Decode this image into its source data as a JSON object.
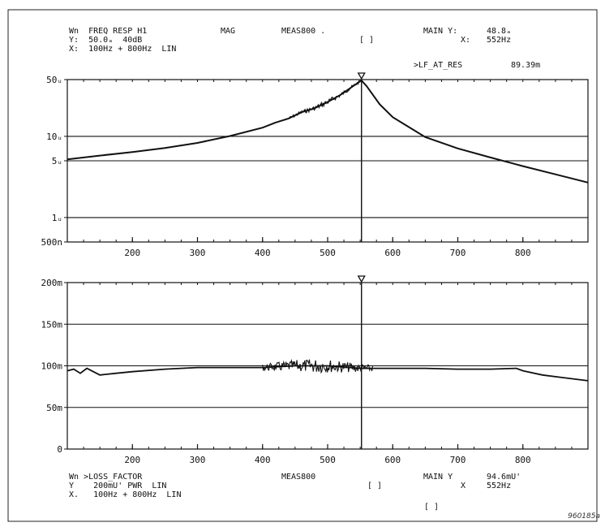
{
  "figure_id": "960185a",
  "top_header": {
    "line1_left": "Wn  FREQ RESP H1",
    "line1_mag": "MAG",
    "line1_meas": "MEAS800 .",
    "line1_main": "MAIN Y:",
    "line1_main_val": "48.8ₐ",
    "line2_left": "Y:  50.0ₐ  40dB",
    "line2_brackets": "[ ]",
    "line2_x": "X:",
    "line2_x_val": "552Hz",
    "line3_left": "X:  100Hz + 800Hz  LIN",
    "marker_label": ">LF_AT_RES",
    "marker_value": "89.39m"
  },
  "bottom_header": {
    "line1_left": "Wn >LOSS_FACTOR",
    "line1_meas": "MEAS800",
    "line1_main": "MAIN Y",
    "line1_main_val": "94.6mU'",
    "line2_left": "Y    200mU' PWR  LIN",
    "line2_brackets": "[ ]",
    "line2_x": "X",
    "line2_x_val": "552Hz",
    "line3_left": "X.   100Hz + 800Hz  LIN",
    "line4_brackets": "[ ]"
  },
  "chart_data": [
    {
      "type": "line",
      "title": "FREQ RESP H1",
      "scale": "log",
      "xlim": [
        100,
        900
      ],
      "ylim": [
        5e-07,
        5e-05
      ],
      "x_ticks": [
        200,
        300,
        400,
        500,
        600,
        700,
        800
      ],
      "x_tick_labels": [
        "200",
        "300",
        "400",
        "500",
        "600",
        "700",
        "800"
      ],
      "y_ticks": [
        5e-07,
        1e-06,
        5e-06,
        1e-05,
        5e-05
      ],
      "y_tick_labels": [
        "500n",
        "1ᵤ",
        "5ᵤ",
        "10ᵤ",
        "50ᵤ"
      ],
      "marker_x": 552,
      "series": [
        {
          "x": [
            100,
            150,
            200,
            250,
            300,
            350,
            400,
            420,
            440,
            460,
            480,
            500,
            520,
            540,
            552,
            560,
            580,
            600,
            650,
            700,
            750,
            800,
            850,
            900
          ],
          "y": [
            5.2e-06,
            5.8e-06,
            6.4e-06,
            7.2e-06,
            8.3e-06,
            1.01e-05,
            1.28e-05,
            1.48e-05,
            1.66e-05,
            1.98e-05,
            2.22e-05,
            2.65e-05,
            3.25e-05,
            4.2e-05,
            4.88e-05,
            4.15e-05,
            2.48e-05,
            1.72e-05,
            9.8e-06,
            7.1e-06,
            5.5e-06,
            4.3e-06,
            3.4e-06,
            2.7e-06
          ],
          "noise_band": [
            440,
            552
          ]
        }
      ]
    },
    {
      "type": "line",
      "title": ">LOSS_FACTOR",
      "scale": "linear",
      "xlim": [
        100,
        900
      ],
      "ylim": [
        0,
        0.2
      ],
      "x_ticks": [
        200,
        300,
        400,
        500,
        600,
        700,
        800
      ],
      "x_tick_labels": [
        "200",
        "300",
        "400",
        "500",
        "600",
        "700",
        "800"
      ],
      "y_ticks": [
        0,
        0.05,
        0.1,
        0.15,
        0.2
      ],
      "y_tick_labels": [
        "0",
        "50m",
        "100m",
        "150m",
        "200m"
      ],
      "marker_x": 552,
      "series": [
        {
          "x": [
            100,
            110,
            120,
            130,
            140,
            150,
            175,
            200,
            250,
            300,
            350,
            400,
            450,
            500,
            550,
            600,
            650,
            700,
            750,
            790,
            800,
            830,
            860,
            900
          ],
          "y": [
            0.094,
            0.096,
            0.091,
            0.097,
            0.093,
            0.089,
            0.091,
            0.093,
            0.096,
            0.098,
            0.098,
            0.098,
            0.1,
            0.1,
            0.097,
            0.097,
            0.097,
            0.096,
            0.096,
            0.097,
            0.094,
            0.089,
            0.086,
            0.082
          ],
          "noise_band": [
            400,
            570
          ]
        }
      ]
    }
  ]
}
